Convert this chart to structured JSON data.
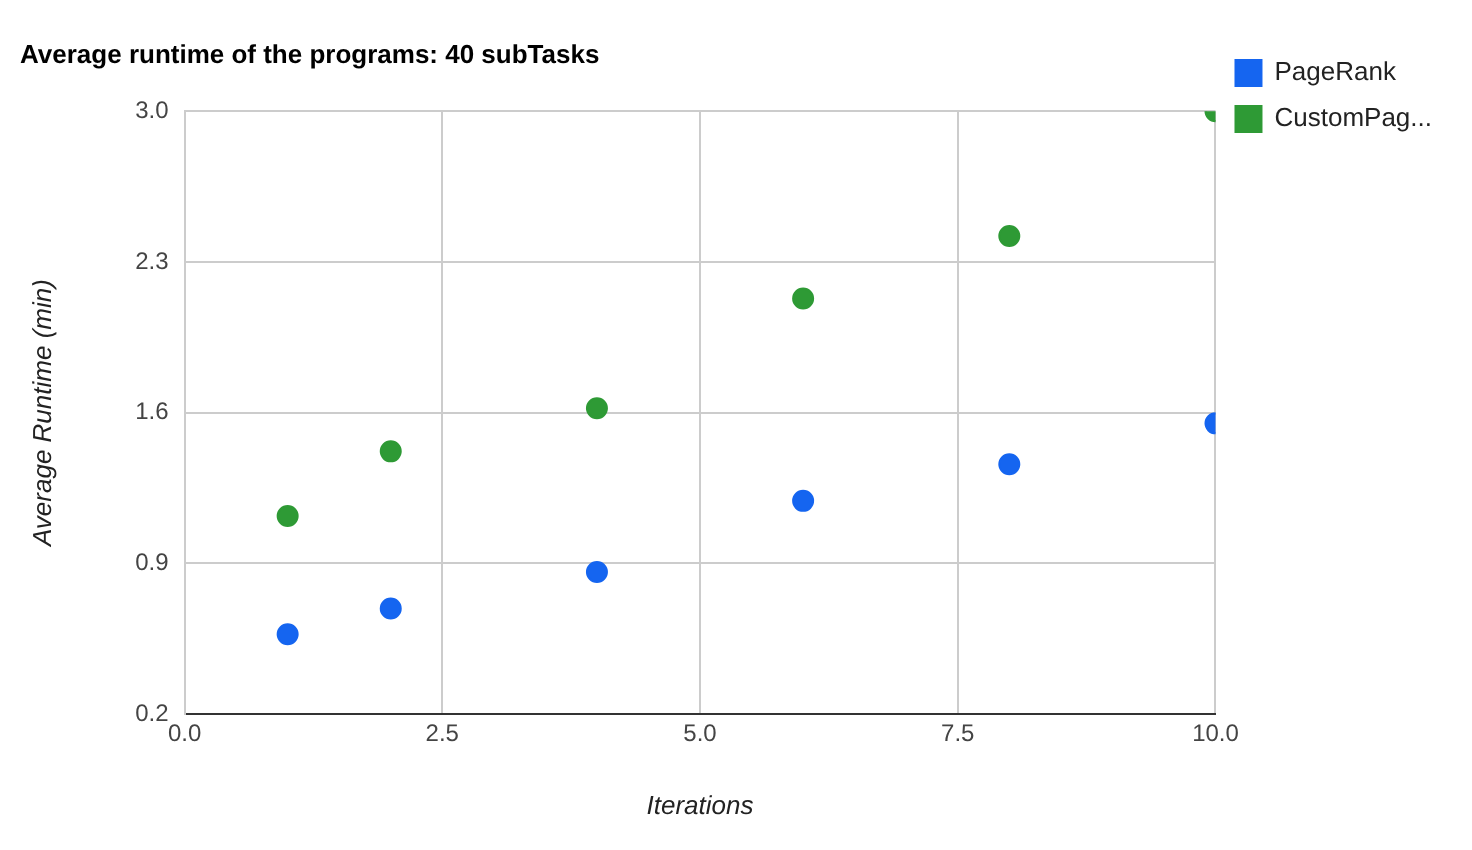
{
  "chart_data": {
    "type": "scatter",
    "title": "Average runtime of the programs: 40 subTasks",
    "xlabel": "Iterations",
    "ylabel": "Average Runtime (min)",
    "x": [
      1,
      2,
      4,
      6,
      8,
      10
    ],
    "series": [
      {
        "name": "PageRank",
        "color": "#1565f0",
        "values": [
          0.57,
          0.69,
          0.86,
          1.19,
          1.36,
          1.55
        ]
      },
      {
        "name": "CustomPag...",
        "color": "#2e9a35",
        "values": [
          1.12,
          1.42,
          1.62,
          2.13,
          2.42,
          3.0
        ]
      }
    ],
    "xlim": [
      0,
      10
    ],
    "xticks": [
      {
        "value": 0,
        "label": "0.0"
      },
      2.5,
      {
        "value": 5,
        "label": "5.0"
      },
      7.5,
      {
        "value": 10,
        "label": "10.0"
      }
    ],
    "ylim": [
      0.2,
      3.0
    ],
    "yticks": [
      0.2,
      0.9,
      1.6,
      2.3,
      {
        "value": 3,
        "label": "3.0"
      }
    ],
    "grid": true,
    "legend": "top right",
    "marker": "circle"
  }
}
